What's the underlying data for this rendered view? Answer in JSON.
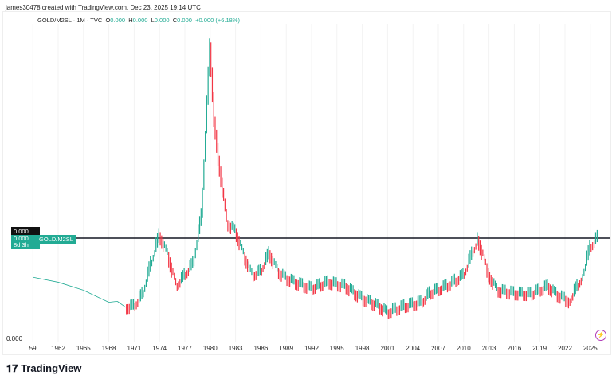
{
  "header": {
    "credit": "james30478 created with TradingView.com, Dec 23, 2025 19:14 UTC",
    "symbol": "GOLD/M2SL · 1M · TVC",
    "o_label": "O",
    "o": "0.000",
    "h_label": "H",
    "h": "0.000",
    "l_label": "L",
    "l": "0.000",
    "c_label": "C",
    "c": "0.000",
    "change": "+0.000 (+6.18%)"
  },
  "price_tags": {
    "crosshair": "0.000",
    "last": "0.000",
    "countdown": "8d 3h",
    "series_name": "GOLD/M2SL"
  },
  "y_axis": {
    "label": "0.000"
  },
  "brand": {
    "logo_text": "TradingView"
  },
  "colors": {
    "up": "#22ab94",
    "down": "#f23645",
    "line": "#131722"
  },
  "icons": {
    "alert": "lightning-icon"
  },
  "chart_data": {
    "type": "line",
    "title": "GOLD/M2SL",
    "x_tick_labels": [
      "59",
      "1962",
      "1965",
      "1968",
      "1971",
      "1974",
      "1977",
      "1980",
      "1983",
      "1986",
      "1989",
      "1992",
      "1995",
      "1998",
      "2001",
      "2004",
      "2007",
      "2010",
      "2013",
      "2016",
      "2019",
      "2022",
      "2025"
    ],
    "y_tick_labels": [
      "0.000"
    ],
    "horizontal_line_value": 1.0,
    "x": [
      1959,
      1962,
      1965,
      1968,
      1969,
      1970,
      1971,
      1972,
      1973,
      1974,
      1975,
      1976,
      1977,
      1978,
      1979,
      1980,
      1980.5,
      1981,
      1982,
      1983,
      1984,
      1985,
      1986,
      1987,
      1988,
      1989,
      1990,
      1992,
      1994,
      1996,
      1998,
      2000,
      2001,
      2003,
      2005,
      2006,
      2008,
      2010,
      2011.7,
      2013,
      2014,
      2016,
      2018,
      2020,
      2021,
      2022.5,
      2024,
      2025,
      2025.9
    ],
    "y": [
      0.61,
      0.56,
      0.48,
      0.36,
      0.37,
      0.31,
      0.32,
      0.44,
      0.75,
      1.03,
      0.83,
      0.52,
      0.63,
      0.75,
      1.23,
      2.92,
      2.18,
      1.79,
      1.15,
      1.07,
      0.83,
      0.63,
      0.67,
      0.85,
      0.67,
      0.6,
      0.56,
      0.5,
      0.56,
      0.52,
      0.4,
      0.32,
      0.26,
      0.32,
      0.36,
      0.45,
      0.52,
      0.63,
      0.99,
      0.63,
      0.48,
      0.45,
      0.44,
      0.52,
      0.44,
      0.37,
      0.6,
      0.91,
      1.01
    ],
    "grid": true
  }
}
